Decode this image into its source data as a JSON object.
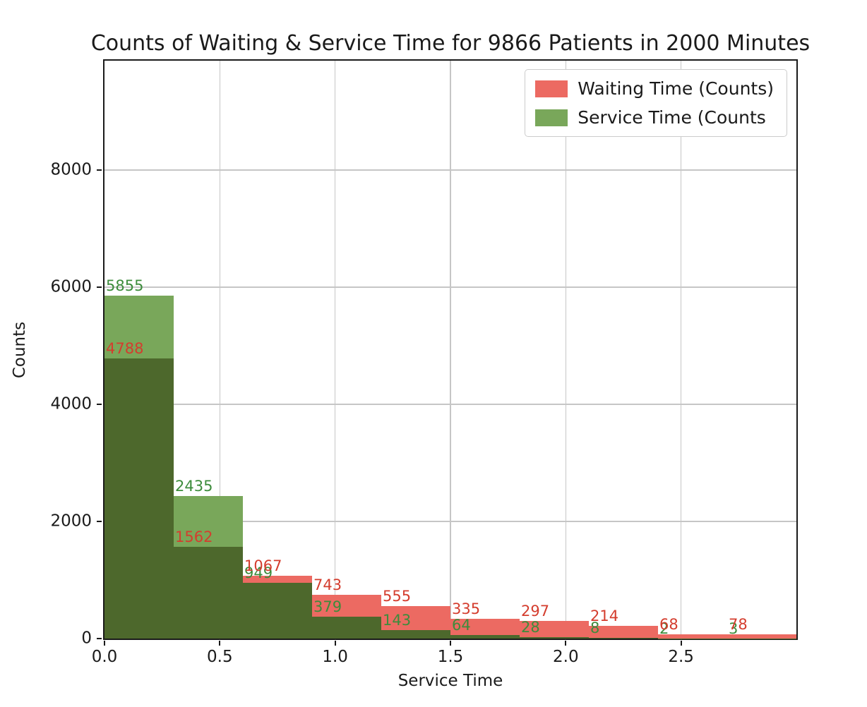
{
  "figure": {
    "background": "#ffffff"
  },
  "chart_data": {
    "type": "bar",
    "subtype": "overlapping-histogram",
    "title": "Counts of Waiting & Service Time for 9866 Patients in 2000 Minutes",
    "xlabel": "Service Time",
    "ylabel": "Counts",
    "xlim": [
      0.0,
      3.0
    ],
    "ylim": [
      0,
      9866
    ],
    "grid": true,
    "legend_position": "upper right",
    "x_ticks": [
      {
        "value": 0.0,
        "label": "0.0"
      },
      {
        "value": 0.5,
        "label": "0.5"
      },
      {
        "value": 1.0,
        "label": "1.0"
      },
      {
        "value": 1.5,
        "label": "1.5"
      },
      {
        "value": 2.0,
        "label": "2.0"
      },
      {
        "value": 2.5,
        "label": "2.5"
      }
    ],
    "y_ticks": [
      {
        "value": 0,
        "label": "0"
      },
      {
        "value": 2000,
        "label": "2000"
      },
      {
        "value": 4000,
        "label": "4000"
      },
      {
        "value": 6000,
        "label": "6000"
      },
      {
        "value": 8000,
        "label": "8000"
      }
    ],
    "bin_edges": [
      0.0,
      0.3,
      0.6,
      0.9,
      1.2,
      1.5,
      1.8,
      2.1,
      2.4,
      2.7,
      3.0
    ],
    "series": [
      {
        "name": "Waiting Time (Counts)",
        "legend_label": "Waiting Time (Counts)",
        "bar_color": "#ec6a62",
        "label_color": "#d43d2e",
        "values": [
          4788,
          1562,
          1067,
          743,
          555,
          335,
          297,
          214,
          68,
          78
        ]
      },
      {
        "name": "Service Time (Counts",
        "legend_label": "Service Time (Counts",
        "bar_color": "#79a75a",
        "label_color": "#3d8c3c",
        "values": [
          5855,
          2435,
          949,
          379,
          143,
          64,
          28,
          8,
          2,
          3
        ]
      }
    ],
    "overlap_color": "#4d682c",
    "grid_color": "#c6c6c6",
    "frame_color": "#1a1a1a",
    "text_color": "#1a1a1a"
  }
}
